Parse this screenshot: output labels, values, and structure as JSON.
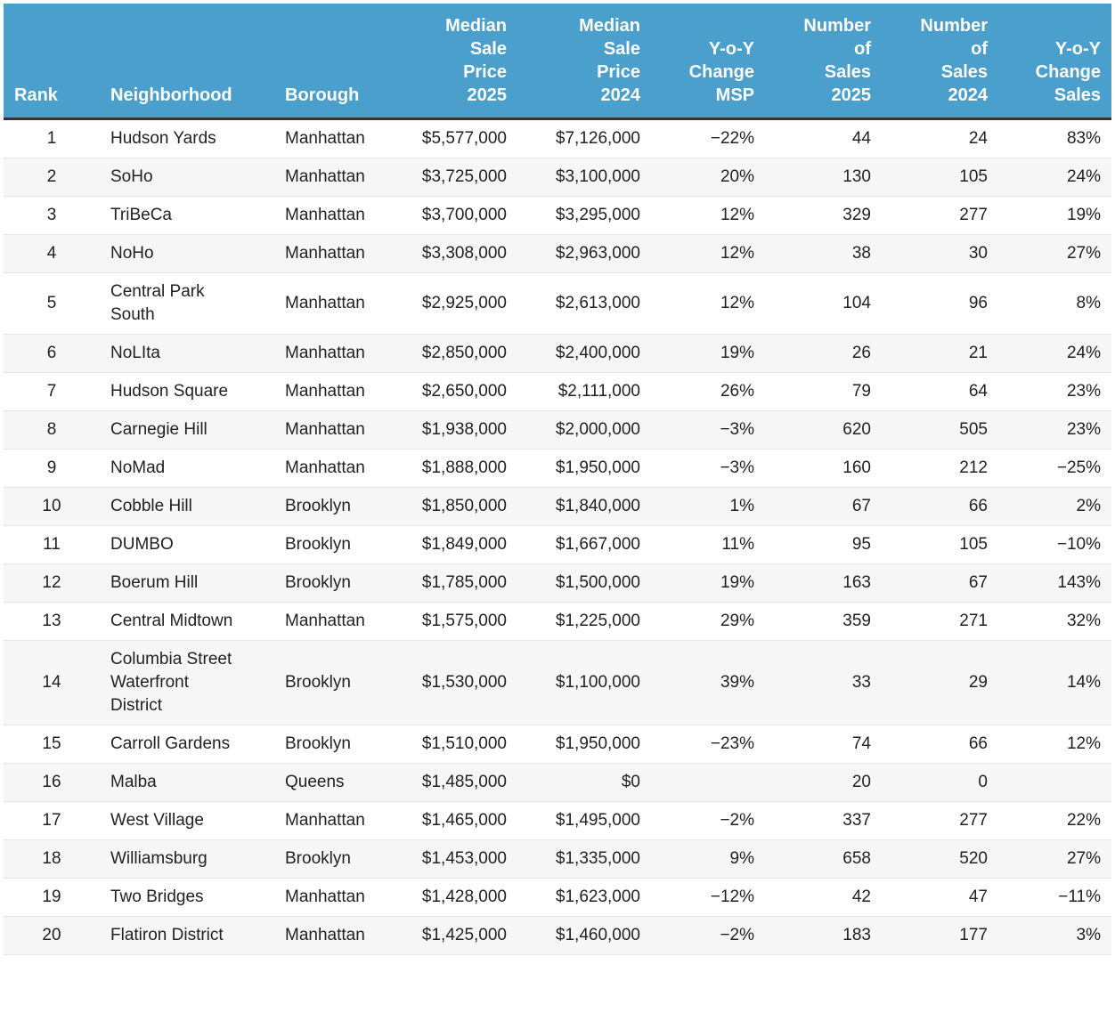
{
  "table": {
    "columns": [
      "Rank",
      "Neighborhood",
      "Borough",
      "Median Sale Price 2025",
      "Median Sale Price 2024",
      "Y-o-Y Change MSP",
      "Number of Sales 2025",
      "Number of Sales 2024",
      "Y-o-Y Change Sales"
    ],
    "rows": [
      [
        "1",
        "Hudson Yards",
        "Manhattan",
        "$5,577,000",
        "$7,126,000",
        "−22%",
        "44",
        "24",
        "83%"
      ],
      [
        "2",
        "SoHo",
        "Manhattan",
        "$3,725,000",
        "$3,100,000",
        "20%",
        "130",
        "105",
        "24%"
      ],
      [
        "3",
        "TriBeCa",
        "Manhattan",
        "$3,700,000",
        "$3,295,000",
        "12%",
        "329",
        "277",
        "19%"
      ],
      [
        "4",
        "NoHo",
        "Manhattan",
        "$3,308,000",
        "$2,963,000",
        "12%",
        "38",
        "30",
        "27%"
      ],
      [
        "5",
        "Central Park South",
        "Manhattan",
        "$2,925,000",
        "$2,613,000",
        "12%",
        "104",
        "96",
        "8%"
      ],
      [
        "6",
        "NoLIta",
        "Manhattan",
        "$2,850,000",
        "$2,400,000",
        "19%",
        "26",
        "21",
        "24%"
      ],
      [
        "7",
        "Hudson Square",
        "Manhattan",
        "$2,650,000",
        "$2,111,000",
        "26%",
        "79",
        "64",
        "23%"
      ],
      [
        "8",
        "Carnegie Hill",
        "Manhattan",
        "$1,938,000",
        "$2,000,000",
        "−3%",
        "620",
        "505",
        "23%"
      ],
      [
        "9",
        "NoMad",
        "Manhattan",
        "$1,888,000",
        "$1,950,000",
        "−3%",
        "160",
        "212",
        "−25%"
      ],
      [
        "10",
        "Cobble Hill",
        "Brooklyn",
        "$1,850,000",
        "$1,840,000",
        "1%",
        "67",
        "66",
        "2%"
      ],
      [
        "11",
        "DUMBO",
        "Brooklyn",
        "$1,849,000",
        "$1,667,000",
        "11%",
        "95",
        "105",
        "−10%"
      ],
      [
        "12",
        "Boerum Hill",
        "Brooklyn",
        "$1,785,000",
        "$1,500,000",
        "19%",
        "163",
        "67",
        "143%"
      ],
      [
        "13",
        "Central Midtown",
        "Manhattan",
        "$1,575,000",
        "$1,225,000",
        "29%",
        "359",
        "271",
        "32%"
      ],
      [
        "14",
        "Columbia Street Waterfront District",
        "Brooklyn",
        "$1,530,000",
        "$1,100,000",
        "39%",
        "33",
        "29",
        "14%"
      ],
      [
        "15",
        "Carroll Gardens",
        "Brooklyn",
        "$1,510,000",
        "$1,950,000",
        "−23%",
        "74",
        "66",
        "12%"
      ],
      [
        "16",
        "Malba",
        "Queens",
        "$1,485,000",
        "$0",
        null,
        "20",
        "0",
        null
      ],
      [
        "17",
        "West Village",
        "Manhattan",
        "$1,465,000",
        "$1,495,000",
        "−2%",
        "337",
        "277",
        "22%"
      ],
      [
        "18",
        "Williamsburg",
        "Brooklyn",
        "$1,453,000",
        "$1,335,000",
        "9%",
        "658",
        "520",
        "27%"
      ],
      [
        "19",
        "Two Bridges",
        "Manhattan",
        "$1,428,000",
        "$1,623,000",
        "−12%",
        "42",
        "47",
        "−11%"
      ],
      [
        "20",
        "Flatiron District",
        "Manhattan",
        "$1,425,000",
        "$1,460,000",
        "−2%",
        "183",
        "177",
        "3%"
      ]
    ]
  }
}
